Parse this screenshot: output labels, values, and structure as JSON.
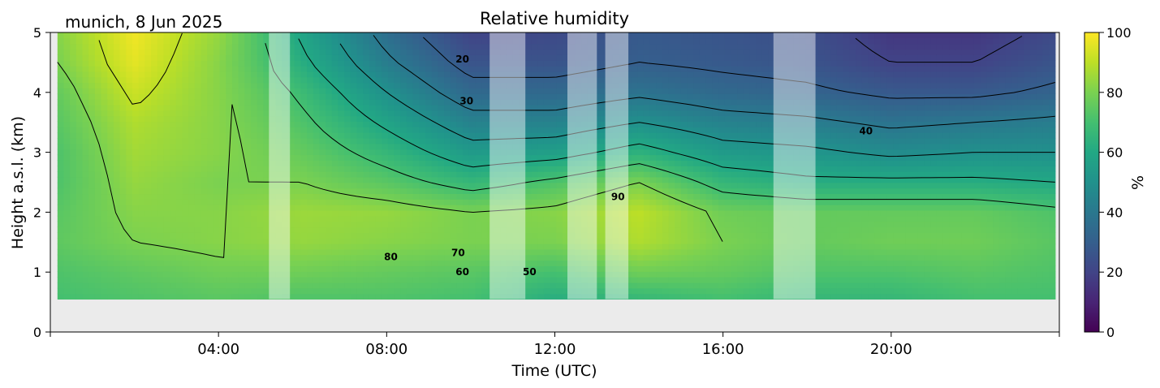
{
  "chart_data": {
    "type": "heatmap",
    "title": "Relative humidity",
    "subtitle": "munich, 8 Jun 2025",
    "xlabel": "Time (UTC)",
    "ylabel": "Height a.s.l. (km)",
    "colorbar_label": "%",
    "xlim_hours": [
      0,
      24
    ],
    "x_ticks": [
      {
        "hour": 4,
        "label": "04:00"
      },
      {
        "hour": 8,
        "label": "08:00"
      },
      {
        "hour": 12,
        "label": "12:00"
      },
      {
        "hour": 16,
        "label": "16:00"
      },
      {
        "hour": 20,
        "label": "20:00"
      }
    ],
    "ylim": [
      0,
      5
    ],
    "y_ticks": [
      "0",
      "1",
      "2",
      "3",
      "4",
      "5"
    ],
    "colorbar_range": [
      0,
      100
    ],
    "colorbar_ticks": [
      "0",
      "20",
      "40",
      "60",
      "80",
      "100"
    ],
    "colormap": "viridis",
    "data_bottom_km": 0.55,
    "data_range_hours": [
      0.17,
      23.9
    ],
    "no_data_color": "#ebebeb",
    "masked_periods_hours": [
      [
        5.2,
        5.7
      ],
      [
        10.45,
        11.3
      ],
      [
        12.3,
        13.0
      ],
      [
        13.2,
        13.75
      ],
      [
        17.2,
        18.2
      ]
    ],
    "height_profile": {
      "heights_km": [
        0.55,
        1.0,
        1.5,
        2.0,
        2.5,
        3.0,
        3.5,
        4.0,
        4.5,
        5.0
      ],
      "times_h": [
        0.2,
        2,
        4,
        6,
        8,
        10,
        12,
        14,
        16,
        18,
        20,
        22,
        23.9
      ],
      "values": [
        [
          70,
          72,
          74,
          72,
          72,
          70,
          62,
          66,
          70,
          66,
          66,
          70,
          70
        ],
        [
          72,
          75,
          78,
          78,
          76,
          74,
          70,
          78,
          76,
          72,
          72,
          74,
          72
        ],
        [
          75,
          80,
          82,
          84,
          82,
          80,
          80,
          88,
          80,
          76,
          78,
          78,
          74
        ],
        [
          74,
          82,
          82,
          85,
          84,
          80,
          82,
          90,
          78,
          76,
          76,
          76,
          72
        ],
        [
          72,
          84,
          80,
          80,
          74,
          66,
          72,
          80,
          66,
          62,
          62,
          62,
          60
        ],
        [
          72,
          86,
          82,
          76,
          66,
          54,
          56,
          64,
          54,
          52,
          48,
          50,
          50
        ],
        [
          74,
          88,
          82,
          72,
          58,
          44,
          44,
          50,
          44,
          42,
          38,
          40,
          42
        ],
        [
          76,
          92,
          82,
          68,
          50,
          34,
          34,
          38,
          34,
          32,
          28,
          28,
          32
        ],
        [
          80,
          96,
          82,
          62,
          42,
          26,
          26,
          30,
          28,
          26,
          20,
          20,
          26
        ],
        [
          82,
          98,
          84,
          58,
          36,
          20,
          22,
          28,
          26,
          24,
          16,
          16,
          22
        ]
      ]
    },
    "contour_levels": [
      20,
      30,
      40,
      50,
      60,
      70,
      80,
      90
    ],
    "contour_labels": [
      {
        "text": "20",
        "hour": 9.8,
        "km": 4.5
      },
      {
        "text": "30",
        "hour": 9.9,
        "km": 3.8
      },
      {
        "text": "40",
        "hour": 19.4,
        "km": 3.3
      },
      {
        "text": "90",
        "hour": 13.5,
        "km": 2.2
      },
      {
        "text": "80",
        "hour": 8.1,
        "km": 1.2
      },
      {
        "text": "70",
        "hour": 9.7,
        "km": 1.27
      },
      {
        "text": "60",
        "hour": 9.8,
        "km": 0.95
      },
      {
        "text": "50",
        "hour": 11.4,
        "km": 0.95
      }
    ]
  }
}
